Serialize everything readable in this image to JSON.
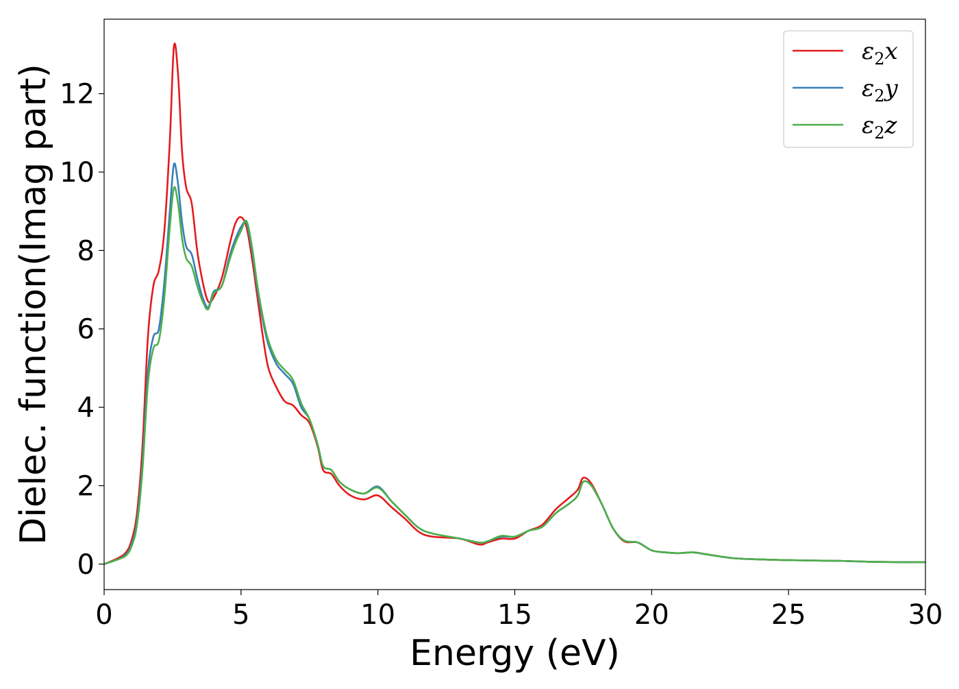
{
  "chart_data": {
    "type": "line",
    "title": "",
    "xlabel": "Energy (eV)",
    "ylabel": "Dielec. function(Imag part)",
    "xlim": [
      0,
      30
    ],
    "ylim": [
      -0.65,
      13.9
    ],
    "xticks": [
      0,
      5,
      10,
      15,
      20,
      25,
      30
    ],
    "yticks": [
      0,
      2,
      4,
      6,
      8,
      10,
      12
    ],
    "grid": false,
    "legend_position": "top-right",
    "series": [
      {
        "name": "ε₂x",
        "legend_base": "ε",
        "legend_sub": "2",
        "legend_suffix": "x",
        "color": "#e41a1c",
        "x": [
          0,
          0.5,
          0.8,
          1.0,
          1.2,
          1.4,
          1.6,
          1.8,
          2.0,
          2.2,
          2.4,
          2.55,
          2.7,
          2.85,
          3.0,
          3.2,
          3.4,
          3.6,
          3.8,
          4.0,
          4.3,
          4.6,
          4.8,
          5.0,
          5.2,
          5.4,
          5.6,
          5.8,
          6.0,
          6.3,
          6.6,
          6.9,
          7.2,
          7.5,
          7.8,
          8.0,
          8.3,
          8.6,
          9.0,
          9.5,
          10.0,
          10.5,
          11.0,
          11.5,
          12.0,
          13.0,
          13.7,
          14.0,
          14.5,
          15.0,
          15.5,
          16.0,
          16.5,
          17.0,
          17.3,
          17.5,
          17.8,
          18.2,
          18.6,
          19.0,
          19.5,
          20.0,
          20.5,
          21.0,
          21.5,
          22.0,
          23.0,
          24.0,
          25.0,
          26.0,
          27.0,
          28.0,
          29.0,
          30.0
        ],
        "y": [
          0.0,
          0.15,
          0.3,
          0.6,
          1.3,
          3.0,
          5.8,
          7.1,
          7.5,
          8.5,
          10.8,
          13.2,
          12.5,
          10.5,
          9.6,
          9.2,
          8.0,
          7.2,
          6.7,
          6.8,
          7.3,
          8.2,
          8.7,
          8.85,
          8.6,
          7.8,
          6.8,
          5.8,
          5.0,
          4.5,
          4.15,
          4.05,
          3.8,
          3.6,
          3.0,
          2.4,
          2.3,
          2.0,
          1.75,
          1.65,
          1.75,
          1.45,
          1.15,
          0.82,
          0.7,
          0.65,
          0.5,
          0.55,
          0.65,
          0.65,
          0.85,
          1.0,
          1.4,
          1.7,
          1.9,
          2.2,
          2.05,
          1.5,
          0.9,
          0.58,
          0.55,
          0.35,
          0.3,
          0.28,
          0.3,
          0.25,
          0.15,
          0.12,
          0.1,
          0.09,
          0.08,
          0.06,
          0.05,
          0.05
        ]
      },
      {
        "name": "ε₂y",
        "legend_base": "ε",
        "legend_sub": "2",
        "legend_suffix": "y",
        "color": "#377eb8",
        "x": [
          0,
          0.5,
          0.8,
          1.0,
          1.2,
          1.4,
          1.6,
          1.8,
          2.0,
          2.2,
          2.4,
          2.55,
          2.7,
          2.85,
          3.0,
          3.2,
          3.4,
          3.6,
          3.8,
          4.0,
          4.3,
          4.6,
          4.8,
          5.0,
          5.2,
          5.4,
          5.6,
          5.8,
          6.0,
          6.3,
          6.6,
          6.9,
          7.2,
          7.5,
          7.8,
          8.0,
          8.3,
          8.6,
          9.0,
          9.5,
          10.0,
          10.5,
          11.0,
          11.5,
          12.0,
          13.0,
          13.7,
          14.0,
          14.5,
          15.0,
          15.5,
          16.0,
          16.5,
          17.0,
          17.3,
          17.5,
          17.8,
          18.2,
          18.6,
          19.0,
          19.5,
          20.0,
          20.5,
          21.0,
          21.5,
          22.0,
          23.0,
          24.0,
          25.0,
          26.0,
          27.0,
          28.0,
          29.0,
          30.0
        ],
        "y": [
          0.0,
          0.12,
          0.25,
          0.5,
          1.1,
          2.6,
          4.9,
          5.8,
          6.0,
          7.2,
          9.0,
          10.2,
          9.7,
          8.7,
          8.1,
          7.9,
          7.3,
          6.8,
          6.55,
          6.95,
          7.1,
          7.9,
          8.3,
          8.6,
          8.7,
          8.0,
          7.0,
          6.2,
          5.6,
          5.1,
          4.85,
          4.6,
          4.0,
          3.7,
          3.05,
          2.5,
          2.4,
          2.1,
          1.9,
          1.8,
          1.98,
          1.6,
          1.25,
          0.92,
          0.78,
          0.65,
          0.55,
          0.58,
          0.7,
          0.7,
          0.85,
          0.95,
          1.3,
          1.55,
          1.75,
          2.1,
          2.0,
          1.5,
          0.9,
          0.6,
          0.55,
          0.35,
          0.3,
          0.28,
          0.3,
          0.25,
          0.15,
          0.12,
          0.1,
          0.09,
          0.08,
          0.06,
          0.05,
          0.05
        ]
      },
      {
        "name": "ε₂z",
        "legend_base": "ε",
        "legend_sub": "2",
        "legend_suffix": "z",
        "color": "#4daf4a",
        "x": [
          0,
          0.5,
          0.8,
          1.0,
          1.2,
          1.4,
          1.6,
          1.8,
          2.0,
          2.2,
          2.4,
          2.55,
          2.7,
          2.85,
          3.0,
          3.2,
          3.4,
          3.6,
          3.8,
          4.0,
          4.3,
          4.6,
          4.8,
          5.0,
          5.2,
          5.4,
          5.6,
          5.8,
          6.0,
          6.3,
          6.6,
          6.9,
          7.2,
          7.5,
          7.8,
          8.0,
          8.3,
          8.6,
          9.0,
          9.5,
          10.0,
          10.5,
          11.0,
          11.5,
          12.0,
          13.0,
          13.7,
          14.0,
          14.5,
          15.0,
          15.5,
          16.0,
          16.5,
          17.0,
          17.3,
          17.5,
          17.8,
          18.2,
          18.6,
          19.0,
          19.5,
          20.0,
          20.5,
          21.0,
          21.5,
          22.0,
          23.0,
          24.0,
          25.0,
          26.0,
          27.0,
          28.0,
          29.0,
          30.0
        ],
        "y": [
          0.0,
          0.12,
          0.22,
          0.45,
          1.0,
          2.4,
          4.6,
          5.5,
          5.7,
          6.8,
          8.6,
          9.6,
          9.2,
          8.3,
          7.8,
          7.6,
          7.1,
          6.7,
          6.5,
          6.9,
          7.1,
          7.8,
          8.2,
          8.5,
          8.75,
          8.1,
          7.1,
          6.3,
          5.7,
          5.2,
          4.95,
          4.7,
          4.1,
          3.7,
          3.05,
          2.5,
          2.4,
          2.1,
          1.9,
          1.8,
          1.95,
          1.6,
          1.25,
          0.92,
          0.78,
          0.65,
          0.55,
          0.58,
          0.72,
          0.7,
          0.85,
          0.95,
          1.3,
          1.55,
          1.75,
          2.1,
          2.0,
          1.5,
          0.9,
          0.6,
          0.55,
          0.35,
          0.3,
          0.28,
          0.3,
          0.25,
          0.15,
          0.12,
          0.1,
          0.09,
          0.08,
          0.06,
          0.05,
          0.05
        ]
      }
    ]
  }
}
